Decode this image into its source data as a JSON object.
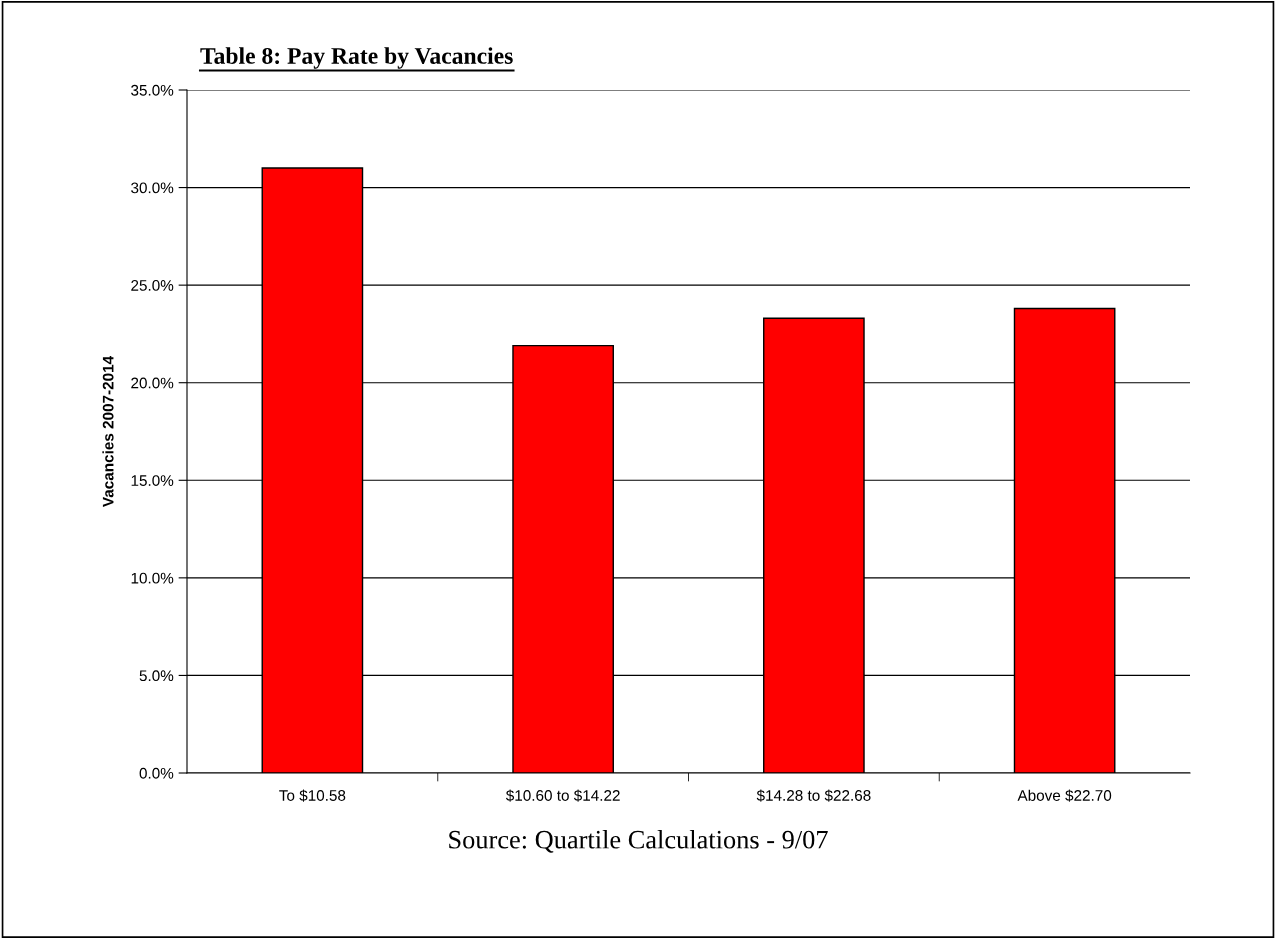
{
  "chart_data": {
    "type": "bar",
    "title": "Table 8: Pay Rate by Vacancies",
    "ylabel": "Vacancies 2007-2014",
    "categories": [
      "To $10.58",
      "$10.60 to $14.22",
      "$14.28 to $22.68",
      "Above $22.70"
    ],
    "values": [
      31.0,
      21.9,
      23.3,
      23.8
    ],
    "color": "#ff0000",
    "ylim": [
      0,
      35
    ],
    "yticks": [
      {
        "value": 0,
        "label": "0.0%"
      },
      {
        "value": 5,
        "label": "5.0%"
      },
      {
        "value": 10,
        "label": "10.0%"
      },
      {
        "value": 15,
        "label": "15.0%"
      },
      {
        "value": 20,
        "label": "20.0%"
      },
      {
        "value": 25,
        "label": "25.0%"
      },
      {
        "value": 30,
        "label": "30.0%"
      },
      {
        "value": 35,
        "label": "35.0%"
      }
    ],
    "grid": "y",
    "legend": false,
    "annotations": [
      "Source: Quartile Calculations - 9/07"
    ]
  }
}
